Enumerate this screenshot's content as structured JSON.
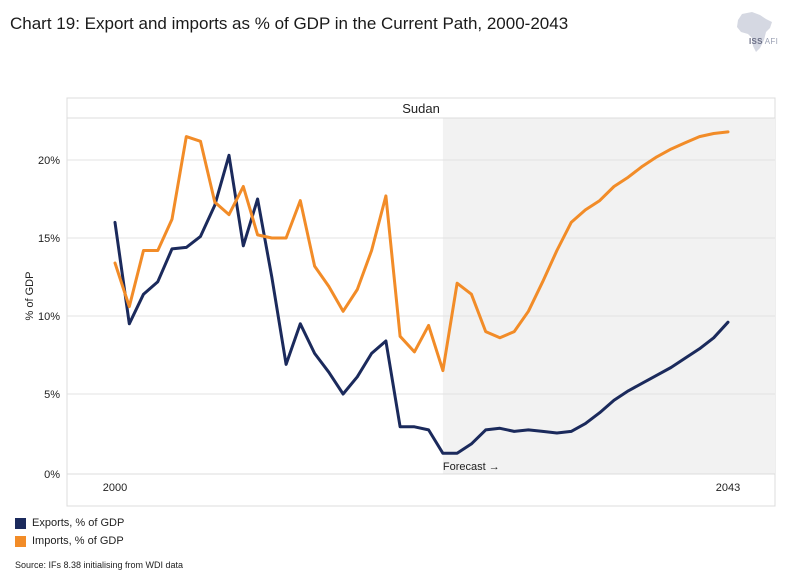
{
  "header": {
    "title": "Chart 19: Export and imports as % of GDP in the Current Path, 2000-2043",
    "logo_label": "ISS",
    "logo_sublabel": "AFI"
  },
  "source": "Source: IFs 8.38 initialising from WDI data",
  "chart_data": {
    "type": "line",
    "title": "Chart 19: Export and imports as % of GDP in the Current Path, 2000-2043",
    "panel_title": "Sudan",
    "xlabel": "",
    "ylabel": "% of GDP",
    "x": [
      2000,
      2001,
      2002,
      2003,
      2004,
      2005,
      2006,
      2007,
      2008,
      2009,
      2010,
      2011,
      2012,
      2013,
      2014,
      2015,
      2016,
      2017,
      2018,
      2019,
      2020,
      2021,
      2022,
      2023,
      2024,
      2025,
      2026,
      2027,
      2028,
      2029,
      2030,
      2031,
      2032,
      2033,
      2034,
      2035,
      2036,
      2037,
      2038,
      2039,
      2040,
      2041,
      2042,
      2043
    ],
    "x_tick_labels": [
      {
        "x": 2000,
        "label": "2000"
      },
      {
        "x": 2043,
        "label": "2043"
      }
    ],
    "xlim": [
      2000,
      2043
    ],
    "ylim": [
      0,
      23
    ],
    "y_ticks": [
      0,
      5,
      10,
      15,
      20
    ],
    "y_tick_labels": [
      "0%",
      "5%",
      "10%",
      "15%",
      "20%"
    ],
    "forecast_start": 2023,
    "forecast_label": "Forecast →",
    "grid": true,
    "legend_position": "bottom-left",
    "series": [
      {
        "name": "Exports, % of GDP",
        "color": "#1b2a5c",
        "values": [
          16.0,
          9.5,
          11.4,
          12.2,
          14.3,
          14.4,
          15.1,
          17.1,
          20.3,
          14.5,
          17.5,
          12.5,
          6.9,
          9.5,
          7.6,
          6.4,
          5.0,
          6.1,
          7.6,
          8.4,
          2.9,
          2.9,
          2.7,
          1.2,
          1.2,
          1.8,
          2.7,
          2.8,
          2.6,
          2.7,
          2.6,
          2.5,
          2.6,
          3.1,
          3.8,
          4.6,
          5.2,
          5.7,
          6.2,
          6.7,
          7.3,
          7.9,
          8.6,
          9.6
        ]
      },
      {
        "name": "Imports, % of GDP",
        "color": "#f28c28",
        "values": [
          13.4,
          10.6,
          14.2,
          14.2,
          16.2,
          21.5,
          21.2,
          17.3,
          16.5,
          18.3,
          15.2,
          15.0,
          15.0,
          17.4,
          13.2,
          11.9,
          10.3,
          11.7,
          14.2,
          17.7,
          8.7,
          7.7,
          9.4,
          6.5,
          12.1,
          11.4,
          9.0,
          8.6,
          9.0,
          10.3,
          12.2,
          14.2,
          16.0,
          16.8,
          17.4,
          18.3,
          18.9,
          19.6,
          20.2,
          20.7,
          21.1,
          21.5,
          21.7,
          21.8
        ]
      }
    ]
  }
}
